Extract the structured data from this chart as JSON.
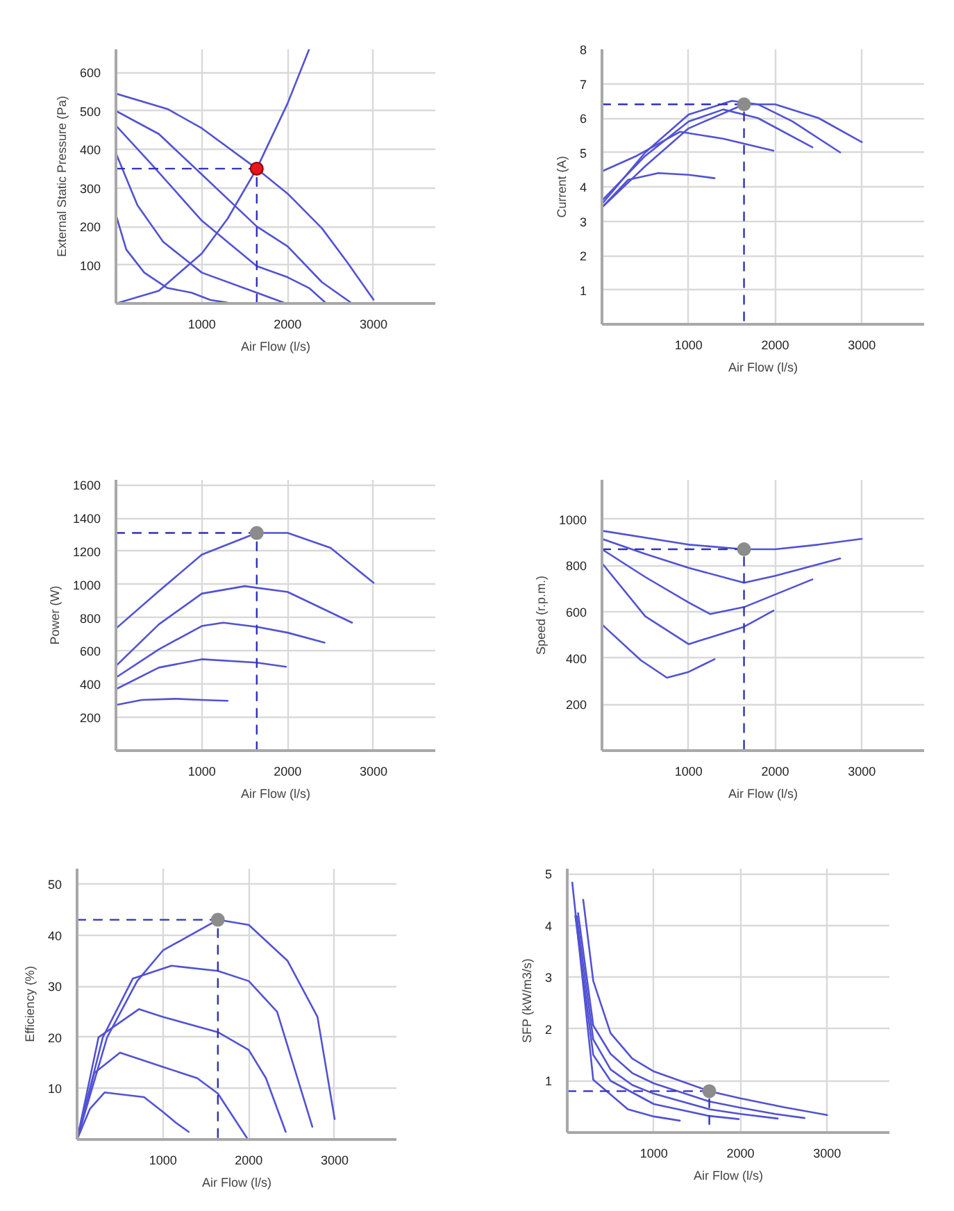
{
  "chart_data": [
    {
      "type": "line",
      "xlabel": "Air Flow (l/s)",
      "ylabel": "External Static Pressure (Pa)",
      "xlim": [
        0,
        3720
      ],
      "xticks": [
        1000,
        2000,
        3000
      ],
      "ylim": [
        0,
        660
      ],
      "yticks": [
        100,
        200,
        300,
        400,
        500,
        600
      ],
      "grid": true,
      "series": [
        {
          "color": "#5252d4",
          "x": [
            0,
            600,
            1000,
            1640,
            2000,
            2400,
            2700,
            3000
          ],
          "values": [
            545,
            505,
            455,
            350,
            285,
            195,
            105,
            10
          ]
        },
        {
          "color": "#5252d4",
          "x": [
            0,
            500,
            1000,
            1640,
            2000,
            2400,
            2750
          ],
          "values": [
            500,
            440,
            335,
            200,
            148,
            55,
            0
          ]
        },
        {
          "color": "#5252d4",
          "x": [
            0,
            400,
            1000,
            1640,
            2000,
            2250,
            2450
          ],
          "values": [
            462,
            365,
            215,
            97,
            68,
            40,
            0
          ]
        },
        {
          "color": "#5252d4",
          "x": [
            0,
            250,
            550,
            1000,
            1640,
            1980
          ],
          "values": [
            390,
            255,
            160,
            80,
            28,
            0
          ]
        },
        {
          "color": "#5252d4",
          "x": [
            0,
            120,
            330,
            600,
            880,
            1100,
            1300
          ],
          "values": [
            230,
            140,
            80,
            40,
            28,
            9,
            2
          ]
        },
        {
          "color": "#5252d4",
          "x": [
            0,
            500,
            1000,
            1300,
            1640,
            2000,
            2250
          ],
          "values": [
            0,
            33,
            130,
            220,
            350,
            520,
            660
          ]
        },
        {
          "type": "line",
          "line_style": "dashed",
          "color": "#3030b8",
          "x": [
            0,
            1640,
            1640
          ],
          "values": [
            350,
            350,
            0
          ]
        },
        {
          "type": "scatter",
          "marker": "circle",
          "color": "#e8141c",
          "x": [
            1640
          ],
          "values": [
            350
          ]
        }
      ]
    },
    {
      "type": "line",
      "xlabel": "Air Flow (l/s)",
      "ylabel": "Current (A)",
      "xlim": [
        0,
        3720
      ],
      "xticks": [
        1000,
        2000,
        3000
      ],
      "ylim": [
        0,
        8
      ],
      "yticks": [
        1,
        2,
        3,
        4,
        5,
        6,
        7,
        8
      ],
      "grid": true,
      "series": [
        {
          "color": "#5252d4",
          "x": [
            0,
            500,
            1000,
            1640,
            2000,
            2500,
            3000
          ],
          "values": [
            3.4,
            4.6,
            5.7,
            6.4,
            6.4,
            6.0,
            5.3
          ]
        },
        {
          "color": "#5252d4",
          "x": [
            0,
            500,
            1000,
            1500,
            1800,
            2200,
            2750
          ],
          "values": [
            3.5,
            5.0,
            6.1,
            6.5,
            6.4,
            5.9,
            5.0
          ]
        },
        {
          "color": "#5252d4",
          "x": [
            0,
            500,
            1000,
            1400,
            1800,
            2430
          ],
          "values": [
            3.6,
            4.9,
            5.9,
            6.25,
            6.0,
            5.15
          ]
        },
        {
          "color": "#5252d4",
          "x": [
            0,
            400,
            900,
            1400,
            1980
          ],
          "values": [
            4.45,
            4.9,
            5.6,
            5.4,
            5.05
          ]
        },
        {
          "color": "#5252d4",
          "x": [
            0,
            300,
            650,
            1000,
            1300
          ],
          "values": [
            3.4,
            4.2,
            4.4,
            4.35,
            4.25
          ]
        },
        {
          "type": "line",
          "line_style": "dashed",
          "color": "#3030b8",
          "x": [
            0,
            1640,
            1640
          ],
          "values": [
            6.4,
            6.4,
            0
          ]
        },
        {
          "type": "scatter",
          "marker": "circle",
          "color": "#8c8c8c",
          "x": [
            1640
          ],
          "values": [
            6.4
          ]
        }
      ]
    },
    {
      "type": "line",
      "xlabel": "Air Flow (l/s)",
      "ylabel": "Power (W)",
      "xlim": [
        0,
        3720
      ],
      "xticks": [
        1000,
        2000,
        3000
      ],
      "ylim": [
        0,
        1630
      ],
      "yticks": [
        200,
        400,
        600,
        800,
        1000,
        1200,
        1400,
        1600
      ],
      "grid": true,
      "series": [
        {
          "color": "#5252d4",
          "x": [
            0,
            500,
            1000,
            1640,
            2000,
            2500,
            3000
          ],
          "values": [
            735,
            960,
            1180,
            1310,
            1310,
            1220,
            1010
          ]
        },
        {
          "color": "#5252d4",
          "x": [
            0,
            500,
            1000,
            1500,
            2000,
            2750
          ],
          "values": [
            510,
            760,
            945,
            990,
            955,
            770
          ]
        },
        {
          "color": "#5252d4",
          "x": [
            0,
            500,
            1000,
            1250,
            1640,
            2000,
            2430
          ],
          "values": [
            440,
            610,
            750,
            770,
            745,
            710,
            650
          ]
        },
        {
          "color": "#5252d4",
          "x": [
            0,
            500,
            1000,
            1640,
            1980
          ],
          "values": [
            370,
            500,
            550,
            530,
            505
          ]
        },
        {
          "color": "#5252d4",
          "x": [
            0,
            300,
            700,
            1000,
            1300
          ],
          "values": [
            275,
            305,
            312,
            305,
            300
          ]
        },
        {
          "type": "line",
          "line_style": "dashed",
          "color": "#3030b8",
          "x": [
            0,
            1640,
            1640
          ],
          "values": [
            1310,
            1310,
            0
          ]
        },
        {
          "type": "scatter",
          "marker": "circle",
          "color": "#8c8c8c",
          "x": [
            1640
          ],
          "values": [
            1310
          ]
        }
      ]
    },
    {
      "type": "line",
      "xlabel": "Air Flow (l/s)",
      "ylabel": "Speed (r.p.m.)",
      "xlim": [
        0,
        3720
      ],
      "xticks": [
        1000,
        2000,
        3000
      ],
      "ylim": [
        0,
        1170
      ],
      "yticks": [
        200,
        400,
        600,
        800,
        1000
      ],
      "grid": true,
      "series": [
        {
          "color": "#5252d4",
          "x": [
            0,
            1000,
            1640,
            2000,
            2500,
            3000
          ],
          "values": [
            950,
            890,
            870,
            870,
            890,
            915
          ]
        },
        {
          "color": "#5252d4",
          "x": [
            0,
            500,
            1000,
            1640,
            2000,
            2750
          ],
          "values": [
            915,
            850,
            790,
            725,
            755,
            830
          ]
        },
        {
          "color": "#5252d4",
          "x": [
            0,
            500,
            1000,
            1250,
            1640,
            2430
          ],
          "values": [
            870,
            750,
            640,
            590,
            620,
            740
          ]
        },
        {
          "color": "#5252d4",
          "x": [
            0,
            500,
            1000,
            1640,
            1980
          ],
          "values": [
            810,
            580,
            460,
            535,
            605
          ]
        },
        {
          "color": "#5252d4",
          "x": [
            0,
            450,
            750,
            1000,
            1300
          ],
          "values": [
            545,
            390,
            315,
            340,
            395
          ]
        },
        {
          "type": "line",
          "line_style": "dashed",
          "color": "#3030b8",
          "x": [
            0,
            1640,
            1640
          ],
          "values": [
            870,
            870,
            0
          ]
        },
        {
          "type": "scatter",
          "marker": "circle",
          "color": "#8c8c8c",
          "x": [
            1640
          ],
          "values": [
            870
          ]
        }
      ]
    },
    {
      "type": "line",
      "xlabel": "Air Flow (l/s)",
      "ylabel": "Efficiency (%)",
      "xlim": [
        0,
        3720
      ],
      "xticks": [
        1000,
        2000,
        3000
      ],
      "ylim": [
        0,
        53
      ],
      "yticks": [
        10,
        20,
        30,
        40,
        50
      ],
      "grid": true,
      "series": [
        {
          "color": "#5252d4",
          "x": [
            0,
            350,
            700,
            1000,
            1640,
            2000,
            2450,
            2800,
            3000
          ],
          "values": [
            0,
            20,
            31,
            37,
            43,
            42,
            35,
            24,
            4
          ]
        },
        {
          "color": "#5252d4",
          "x": [
            0,
            300,
            650,
            1100,
            1640,
            2000,
            2330,
            2740
          ],
          "values": [
            0,
            20,
            31.5,
            34,
            33,
            31,
            25,
            2.5
          ]
        },
        {
          "color": "#5252d4",
          "x": [
            0,
            250,
            720,
            1000,
            1640,
            2000,
            2200,
            2430
          ],
          "values": [
            0,
            20,
            25.5,
            24,
            21,
            17.5,
            12,
            1.5
          ]
        },
        {
          "color": "#5252d4",
          "x": [
            0,
            200,
            500,
            1000,
            1400,
            1640,
            1990
          ],
          "values": [
            0,
            13,
            17,
            14.2,
            12,
            9,
            0
          ]
        },
        {
          "color": "#5252d4",
          "x": [
            0,
            150,
            320,
            780,
            1000,
            1150,
            1300
          ],
          "values": [
            0,
            6,
            9.2,
            8.3,
            5.4,
            3.3,
            1.5
          ]
        },
        {
          "type": "line",
          "line_style": "dashed",
          "color": "#3030b8",
          "x": [
            0,
            1640,
            1640
          ],
          "values": [
            43,
            43,
            0
          ]
        },
        {
          "type": "scatter",
          "marker": "circle",
          "color": "#8c8c8c",
          "x": [
            1640
          ],
          "values": [
            43
          ]
        }
      ]
    },
    {
      "type": "line",
      "xlabel": "Air Flow (l/s)",
      "ylabel": "SFP (kW/m3/s)",
      "xlim": [
        0,
        3720
      ],
      "xticks": [
        1000,
        2000,
        3000
      ],
      "ylim": [
        0,
        5.1
      ],
      "yticks": [
        1,
        2,
        3,
        4,
        5
      ],
      "grid": true,
      "series": [
        {
          "color": "#5252d4",
          "x": [
            184,
            300,
            500,
            750,
            1000,
            1640,
            2000,
            2500,
            3000
          ],
          "values": [
            4.5,
            2.93,
            1.92,
            1.43,
            1.18,
            0.8,
            0.66,
            0.49,
            0.34
          ]
        },
        {
          "color": "#5252d4",
          "x": [
            125,
            300,
            500,
            750,
            1000,
            1640,
            2000,
            2400,
            2740
          ],
          "values": [
            4.24,
            2.07,
            1.52,
            1.15,
            0.95,
            0.6,
            0.48,
            0.36,
            0.28
          ]
        },
        {
          "color": "#5252d4",
          "x": [
            110,
            300,
            500,
            750,
            1000,
            1640,
            2000,
            2430
          ],
          "values": [
            4.18,
            1.8,
            1.22,
            0.92,
            0.75,
            0.45,
            0.36,
            0.27
          ]
        },
        {
          "color": "#5252d4",
          "x": [
            93,
            300,
            500,
            1000,
            1640,
            1980
          ],
          "values": [
            4.19,
            1.5,
            1.0,
            0.55,
            0.32,
            0.26
          ]
        },
        {
          "color": "#5252d4",
          "x": [
            58,
            300,
            700,
            1000,
            1300
          ],
          "values": [
            4.83,
            1.02,
            0.45,
            0.31,
            0.23
          ]
        },
        {
          "type": "line",
          "line_style": "dashed",
          "color": "#3030b8",
          "x": [
            0,
            1640,
            1640
          ],
          "values": [
            0.8,
            0.8,
            0
          ]
        },
        {
          "type": "scatter",
          "marker": "circle",
          "color": "#8c8c8c",
          "x": [
            1640
          ],
          "values": [
            0.8
          ]
        }
      ]
    }
  ]
}
